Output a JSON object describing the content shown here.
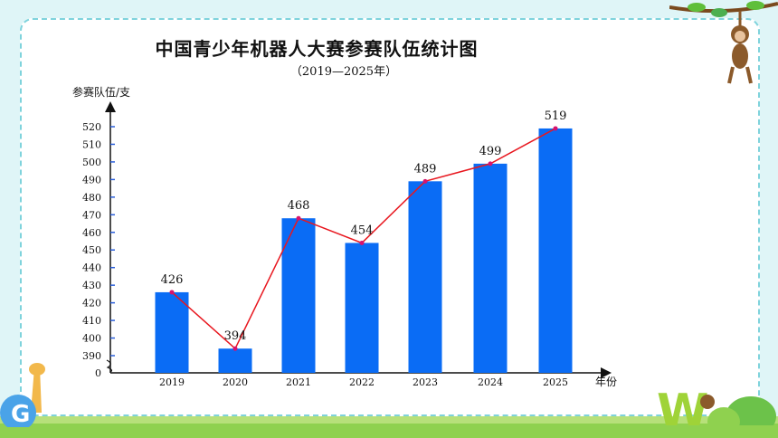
{
  "chart_data": {
    "type": "bar",
    "title": "中国青少年机器人大赛参赛队伍统计图",
    "subtitle": "（2019—2025年）",
    "ylabel": "参赛队伍/支",
    "xlabel": "年份",
    "categories": [
      "2019",
      "2020",
      "2021",
      "2022",
      "2023",
      "2024",
      "2025"
    ],
    "values": [
      426,
      394,
      468,
      454,
      489,
      499,
      519
    ],
    "yticks": [
      0,
      390,
      400,
      410,
      420,
      430,
      440,
      450,
      460,
      470,
      480,
      490,
      500,
      510,
      520
    ],
    "ylim": [
      390,
      520
    ],
    "axis_break": true,
    "overlay_line": true,
    "bar_color": "#0a6cf5",
    "line_color": "#e8171f",
    "grid": false
  }
}
